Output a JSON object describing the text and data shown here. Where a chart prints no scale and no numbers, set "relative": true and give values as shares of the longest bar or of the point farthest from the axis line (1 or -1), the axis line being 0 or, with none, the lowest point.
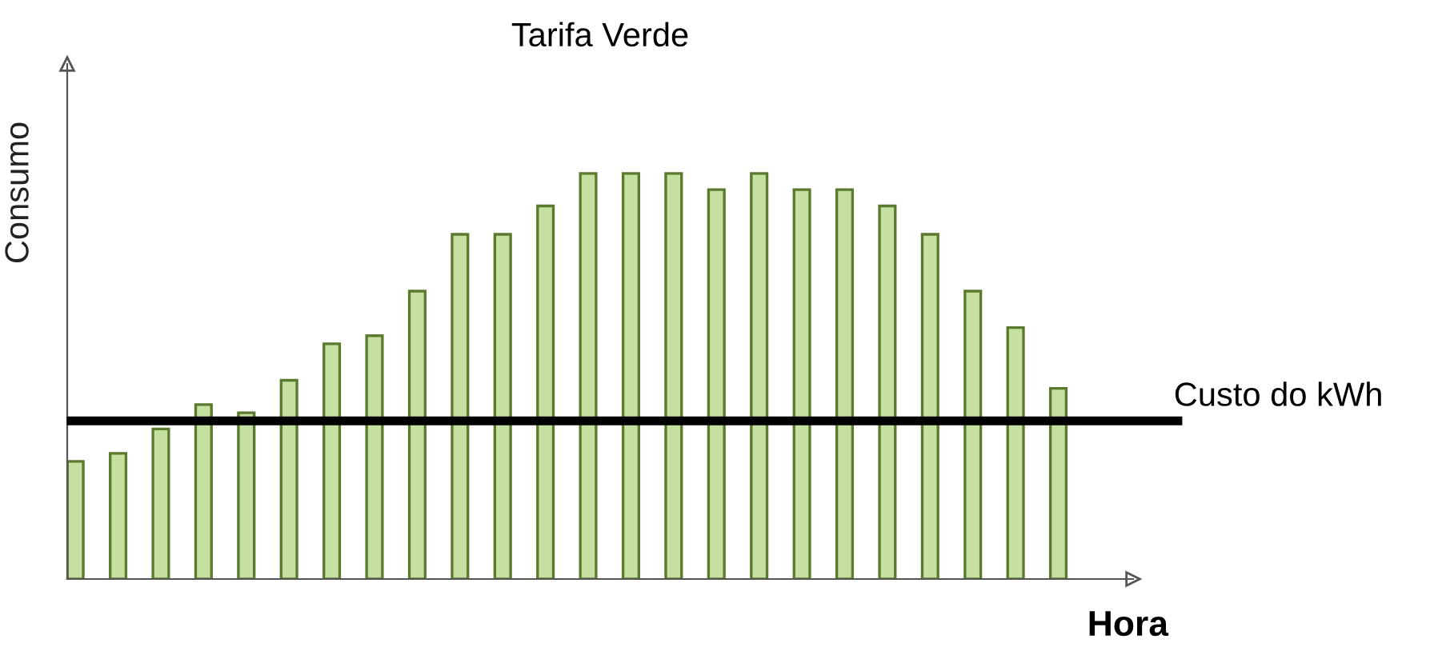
{
  "chart_data": {
    "type": "bar",
    "title": "Tarifa Verde",
    "xlabel": "Hora",
    "ylabel": "Consumo",
    "relative": true,
    "legend": false,
    "categories": [
      null,
      null,
      null,
      null,
      null,
      null,
      null,
      null,
      null,
      null,
      null,
      null,
      null,
      null,
      null,
      null,
      null,
      null,
      null,
      null,
      null,
      null,
      null,
      null
    ],
    "series": [
      {
        "color": "#c5e0a0",
        "values": [
          0.29,
          0.31,
          0.37,
          0.43,
          0.41,
          0.49,
          0.58,
          0.6,
          0.71,
          0.85,
          0.85,
          0.92,
          1,
          1,
          1,
          0.96,
          1,
          0.96,
          0.96,
          0.92,
          0.85,
          0.71,
          0.62,
          0.47
        ]
      }
    ],
    "ref_lines": [
      {
        "axis": "y",
        "value": 0.39,
        "label": "Custo do kWh",
        "color": "#000000",
        "line_style": "solid"
      }
    ]
  }
}
